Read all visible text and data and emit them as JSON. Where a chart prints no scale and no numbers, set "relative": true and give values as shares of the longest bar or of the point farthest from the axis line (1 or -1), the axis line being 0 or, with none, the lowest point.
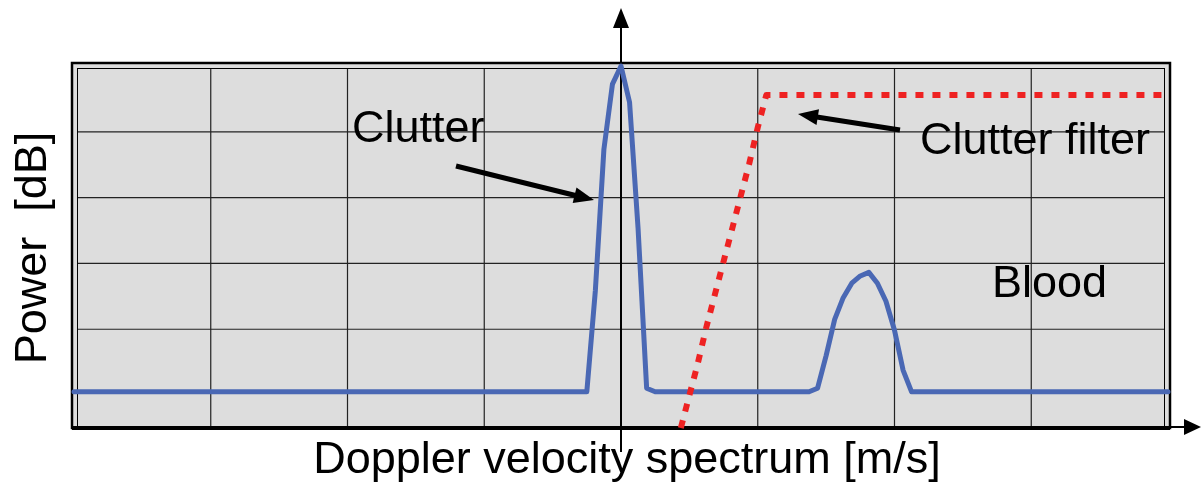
{
  "chart_data": {
    "type": "line",
    "relative": true,
    "xlabel": "Doppler velocity spectrum [m/s]",
    "ylabel": "Power  [dB]",
    "grid": true,
    "annotations": [
      "Clutter",
      "Blood"
    ],
    "categories": [
      null,
      null,
      null,
      null,
      null,
      null,
      null,
      null,
      null,
      null,
      null,
      null,
      null,
      null,
      null,
      null,
      null,
      null,
      null,
      null,
      null,
      null,
      null,
      null,
      null,
      null,
      null,
      null,
      null,
      null,
      null,
      null,
      null,
      null,
      null,
      null,
      null,
      null,
      null,
      null,
      null,
      null,
      null,
      null,
      null,
      null,
      null,
      null,
      null,
      null,
      null,
      null,
      null,
      null,
      null,
      null,
      null,
      null,
      null,
      null,
      null,
      null,
      null,
      null,
      null,
      null,
      null,
      null,
      null,
      null,
      null,
      null,
      null,
      null,
      null,
      null,
      null,
      null,
      null,
      null,
      null,
      null,
      null,
      null,
      null,
      null,
      null,
      null,
      null,
      null,
      null,
      null,
      null,
      null,
      null,
      null,
      null,
      null,
      null,
      null,
      null,
      null,
      null,
      null,
      null,
      null,
      null,
      null,
      null,
      null,
      null,
      null,
      null,
      null,
      null,
      null,
      null,
      null,
      null,
      null,
      null,
      null,
      null,
      null,
      null,
      null,
      null,
      null,
      null
    ],
    "series": [
      {
        "color": "#4a68b4",
        "values": [
          0.1,
          0.1,
          0.1,
          0.1,
          0.1,
          0.1,
          0.1,
          0.1,
          0.1,
          0.1,
          0.1,
          0.1,
          0.1,
          0.1,
          0.1,
          0.1,
          0.1,
          0.1,
          0.1,
          0.1,
          0.1,
          0.1,
          0.1,
          0.1,
          0.1,
          0.1,
          0.1,
          0.1,
          0.1,
          0.1,
          0.1,
          0.1,
          0.1,
          0.1,
          0.1,
          0.1,
          0.1,
          0.1,
          0.1,
          0.1,
          0.1,
          0.1,
          0.1,
          0.1,
          0.1,
          0.1,
          0.1,
          0.1,
          0.1,
          0.1,
          0.1,
          0.1,
          0.1,
          0.1,
          0.1,
          0.1,
          0.1,
          0.1,
          0.1,
          0.1,
          0.1,
          0.38,
          0.77,
          0.95,
          1,
          0.9,
          0.55,
          0.11,
          0.1,
          0.1,
          0.1,
          0.1,
          0.1,
          0.1,
          0.1,
          0.1,
          0.1,
          0.1,
          0.1,
          0.1,
          0.1,
          0.1,
          0.1,
          0.1,
          0.1,
          0.1,
          0.1,
          0.11,
          0.2,
          0.3,
          0.36,
          0.4,
          0.42,
          0.43,
          0.4,
          0.35,
          0.27,
          0.16,
          0.1,
          0.1,
          0.1,
          0.1,
          0.1,
          0.1,
          0.1,
          0.1,
          0.1,
          0.1,
          0.1,
          0.1,
          0.1,
          0.1,
          0.1,
          0.1,
          0.1,
          0.1,
          0.1,
          0.1,
          0.1,
          0.1,
          0.1,
          0.1,
          0.1,
          0.1,
          0.1,
          0.1,
          0.1,
          0.1,
          0.1
        ]
      },
      {
        "name": "Clutter filter",
        "color": "#ee2222",
        "line_style": "dotted",
        "values": [
          null,
          null,
          null,
          null,
          null,
          null,
          null,
          null,
          null,
          null,
          null,
          null,
          null,
          null,
          null,
          null,
          null,
          null,
          null,
          null,
          null,
          null,
          null,
          null,
          null,
          null,
          null,
          null,
          null,
          null,
          null,
          null,
          null,
          null,
          null,
          null,
          null,
          null,
          null,
          null,
          null,
          null,
          null,
          null,
          null,
          null,
          null,
          null,
          null,
          null,
          null,
          null,
          null,
          null,
          null,
          null,
          null,
          null,
          null,
          null,
          null,
          null,
          null,
          null,
          null,
          null,
          null,
          null,
          null,
          null,
          null,
          0,
          0.09,
          0.18,
          0.28,
          0.37,
          0.46,
          0.55,
          0.64,
          0.73,
          0.83,
          0.92,
          0.92,
          0.92,
          0.92,
          0.92,
          0.92,
          0.92,
          0.92,
          0.92,
          0.92,
          0.92,
          0.92,
          0.92,
          0.92,
          0.92,
          0.92,
          0.92,
          0.92,
          0.92,
          0.92,
          0.92,
          0.92,
          0.92,
          0.92,
          0.92,
          0.92,
          0.92,
          0.92,
          0.92,
          0.92,
          0.92,
          0.92,
          0.92,
          0.92,
          0.92,
          0.92,
          0.92,
          0.92,
          0.92,
          0.92,
          0.92,
          0.92,
          0.92,
          0.92,
          0.92,
          0.92,
          0.92,
          0.92
        ]
      }
    ]
  }
}
